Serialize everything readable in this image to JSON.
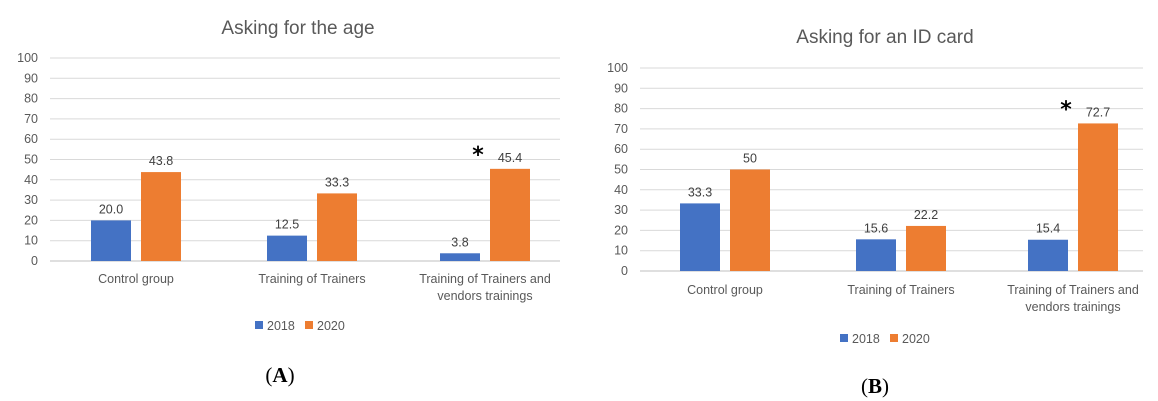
{
  "colors": {
    "s2018": "#4472C4",
    "s2020": "#ED7D31",
    "grid": "#D9D9D9",
    "axis": "#BFBFBF"
  },
  "chart_data": [
    {
      "type": "bar",
      "panel": "A",
      "title": "Asking for the age",
      "ylim": [
        0,
        100
      ],
      "yticks": [
        "0",
        "10",
        "20",
        "30",
        "40",
        "50",
        "60",
        "70",
        "80",
        "90",
        "100"
      ],
      "grid": true,
      "legend_position": "bottom",
      "categories": [
        [
          "Control group"
        ],
        [
          "Training of Trainers"
        ],
        [
          "Training of Trainers and",
          "vendors trainings"
        ]
      ],
      "series": [
        {
          "name": "2018",
          "values": [
            20.0,
            12.5,
            3.8
          ],
          "labels": [
            "20.0",
            "12.5",
            "3.8"
          ]
        },
        {
          "name": "2020",
          "values": [
            43.8,
            33.3,
            45.4
          ],
          "labels": [
            "43.8",
            "33.3",
            "45.4"
          ]
        }
      ],
      "annotations": [
        {
          "text": "*",
          "category_index": 2
        }
      ],
      "panel_label_parts": [
        "(",
        "A",
        ")"
      ]
    },
    {
      "type": "bar",
      "panel": "B",
      "title": "Asking for an ID card",
      "ylim": [
        0,
        100
      ],
      "yticks": [
        "0",
        "10",
        "20",
        "30",
        "40",
        "50",
        "60",
        "70",
        "80",
        "90",
        "100"
      ],
      "grid": true,
      "legend_position": "bottom",
      "categories": [
        [
          "Control group"
        ],
        [
          "Training of Trainers"
        ],
        [
          "Training of Trainers and",
          "vendors trainings"
        ]
      ],
      "series": [
        {
          "name": "2018",
          "values": [
            33.3,
            15.6,
            15.4
          ],
          "labels": [
            "33.3",
            "15.6",
            "15.4"
          ]
        },
        {
          "name": "2020",
          "values": [
            50,
            22.2,
            72.7
          ],
          "labels": [
            "50",
            "22.2",
            "72.7"
          ]
        }
      ],
      "annotations": [
        {
          "text": "*",
          "category_index": 2
        }
      ],
      "panel_label_parts": [
        "(",
        "B",
        ")"
      ]
    }
  ]
}
